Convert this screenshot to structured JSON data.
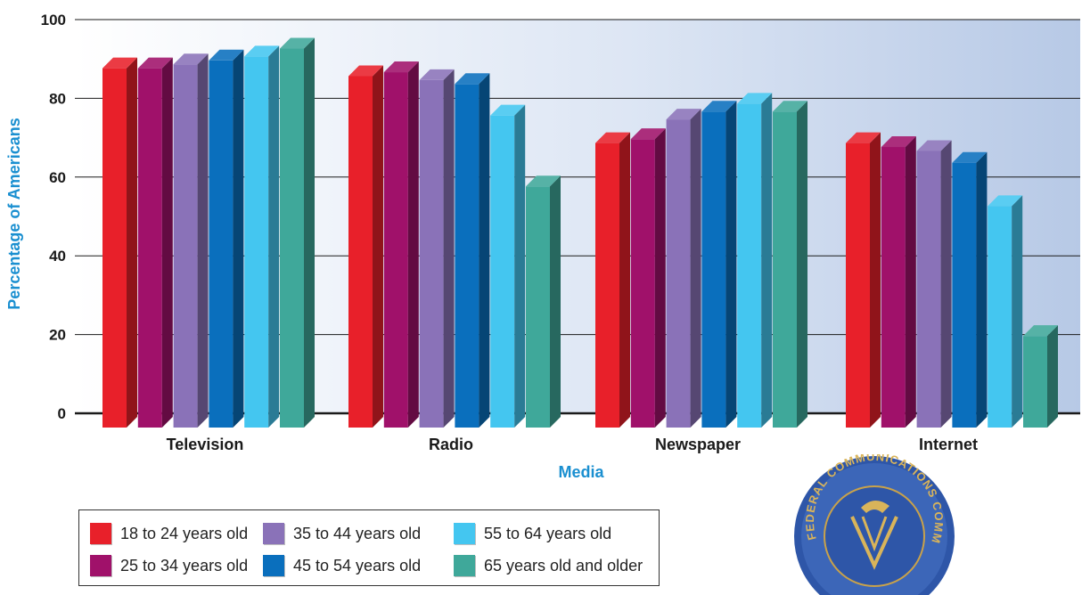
{
  "chart_data": {
    "type": "bar",
    "title": "",
    "xlabel": "Media",
    "ylabel": "Percentage of Americans",
    "ylim": [
      0,
      100
    ],
    "yticks": [
      0,
      20,
      40,
      60,
      80,
      100
    ],
    "grid": true,
    "legend_position": "bottom-left",
    "categories": [
      "Television",
      "Radio",
      "Newspaper",
      "Internet"
    ],
    "series": [
      {
        "name": "18 to 24 years old",
        "color": "#e8202a",
        "values": [
          89,
          87,
          70,
          70
        ]
      },
      {
        "name": "25 to 34 years old",
        "color": "#a0116a",
        "values": [
          89,
          88,
          71,
          69
        ]
      },
      {
        "name": "35 to 44 years old",
        "color": "#8a72b8",
        "values": [
          90,
          86,
          76,
          68
        ]
      },
      {
        "name": "45 to 54 years old",
        "color": "#0a6fbd",
        "values": [
          91,
          85,
          78,
          65
        ]
      },
      {
        "name": "55 to 64 years old",
        "color": "#44c6f0",
        "values": [
          92,
          77,
          80,
          54
        ]
      },
      {
        "name": "65 years old and older",
        "color": "#3fa89a",
        "values": [
          94,
          59,
          78,
          21
        ]
      }
    ]
  },
  "seal": {
    "text": "FEDERAL COMMUNICATIONS COMMISSION",
    "color": "#2e56a8"
  }
}
